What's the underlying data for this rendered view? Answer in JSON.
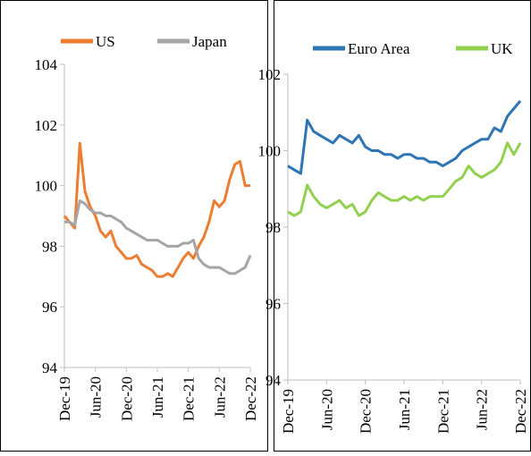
{
  "chart_data": [
    {
      "type": "line",
      "legend": "top",
      "categories": [
        "Dec-19",
        null,
        null,
        null,
        null,
        null,
        "Jun-20",
        null,
        null,
        null,
        null,
        null,
        "Dec-20",
        null,
        null,
        null,
        null,
        null,
        "Jun-21",
        null,
        null,
        null,
        null,
        null,
        "Dec-21",
        null,
        null,
        null,
        null,
        null,
        "Jun-22",
        null,
        null,
        null,
        null,
        null,
        "Dec-22"
      ],
      "series": [
        {
          "name": "US",
          "color": "#ed7d31",
          "values": [
            99.0,
            98.8,
            98.6,
            101.4,
            99.8,
            99.3,
            99.0,
            98.5,
            98.3,
            98.5,
            98.0,
            97.8,
            97.6,
            97.6,
            97.7,
            97.4,
            97.3,
            97.2,
            97.0,
            97.0,
            97.1,
            97.0,
            97.3,
            97.6,
            97.8,
            97.6,
            98.0,
            98.3,
            98.8,
            99.5,
            99.3,
            99.5,
            100.2,
            100.7,
            100.8,
            100.0,
            100.0
          ]
        },
        {
          "name": "Japan",
          "color": "#a5a5a5",
          "values": [
            98.8,
            98.8,
            98.7,
            99.5,
            99.4,
            99.2,
            99.1,
            99.1,
            99.0,
            99.0,
            98.9,
            98.8,
            98.6,
            98.5,
            98.4,
            98.3,
            98.2,
            98.2,
            98.2,
            98.1,
            98.0,
            98.0,
            98.0,
            98.1,
            98.1,
            98.2,
            97.6,
            97.4,
            97.3,
            97.3,
            97.3,
            97.2,
            97.1,
            97.1,
            97.2,
            97.3,
            97.7
          ]
        }
      ],
      "ylim": [
        94,
        104
      ],
      "yticks": [
        94,
        96,
        98,
        100,
        102,
        104
      ]
    },
    {
      "type": "line",
      "legend": "top",
      "categories": [
        "Dec-19",
        null,
        null,
        null,
        null,
        null,
        "Jun-20",
        null,
        null,
        null,
        null,
        null,
        "Dec-20",
        null,
        null,
        null,
        null,
        null,
        "Jun-21",
        null,
        null,
        null,
        null,
        null,
        "Dec-21",
        null,
        null,
        null,
        null,
        null,
        "Jun-22",
        null,
        null,
        null,
        null,
        null,
        "Dec-22"
      ],
      "series": [
        {
          "name": "Euro Area",
          "color": "#2e75b6",
          "values": [
            99.6,
            99.5,
            99.4,
            100.8,
            100.5,
            100.4,
            100.3,
            100.2,
            100.4,
            100.3,
            100.2,
            100.4,
            100.1,
            100.0,
            100.0,
            99.9,
            99.9,
            99.8,
            99.9,
            99.9,
            99.8,
            99.8,
            99.7,
            99.7,
            99.6,
            99.7,
            99.8,
            100.0,
            100.1,
            100.2,
            100.3,
            100.3,
            100.6,
            100.5,
            100.9,
            101.1,
            101.3
          ]
        },
        {
          "name": "UK",
          "color": "#92d050",
          "values": [
            98.4,
            98.3,
            98.4,
            99.1,
            98.8,
            98.6,
            98.5,
            98.6,
            98.7,
            98.5,
            98.6,
            98.3,
            98.4,
            98.7,
            98.9,
            98.8,
            98.7,
            98.7,
            98.8,
            98.7,
            98.8,
            98.7,
            98.8,
            98.8,
            98.8,
            99.0,
            99.2,
            99.3,
            99.6,
            99.4,
            99.3,
            99.4,
            99.5,
            99.7,
            100.2,
            99.9,
            100.2
          ]
        }
      ],
      "ylim": [
        94,
        102
      ],
      "yticks": [
        94,
        96,
        98,
        100,
        102
      ]
    }
  ]
}
